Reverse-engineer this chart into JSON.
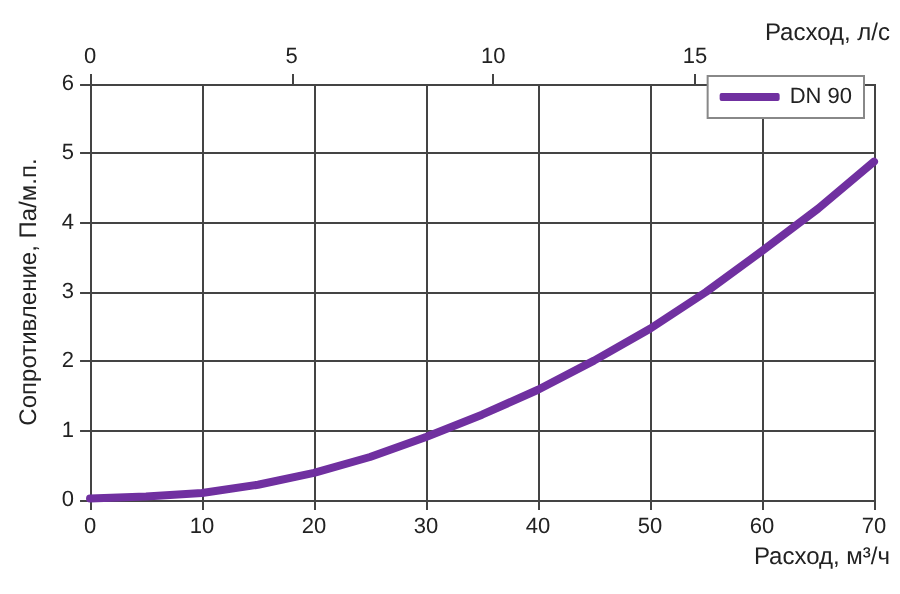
{
  "chart_data": {
    "type": "line",
    "xlabel": "Расход, м³/ч",
    "ylabel": "Сопротивление, Па/м.п.",
    "x2label": "Расход, л/с",
    "x": [
      0,
      5,
      10,
      15,
      20,
      25,
      30,
      35,
      40,
      45,
      50,
      55,
      60,
      65,
      70
    ],
    "series": [
      {
        "name": "DN 90",
        "color": "#7030a0",
        "values": [
          0.02,
          0.05,
          0.1,
          0.22,
          0.39,
          0.62,
          0.91,
          1.23,
          1.59,
          2.01,
          2.47,
          3.0,
          3.59,
          4.2,
          4.88
        ]
      }
    ],
    "xlim": [
      0,
      70
    ],
    "xticks": [
      0,
      10,
      20,
      30,
      40,
      50,
      60,
      70
    ],
    "x2lim": [
      0,
      19.44
    ],
    "x2ticks": [
      0,
      5,
      10,
      15
    ],
    "ylim": [
      0,
      6
    ],
    "yticks": [
      0,
      1,
      2,
      3,
      4,
      5,
      6
    ],
    "grid": true,
    "legend": "top right",
    "marker": "none",
    "line_style": "solid"
  }
}
